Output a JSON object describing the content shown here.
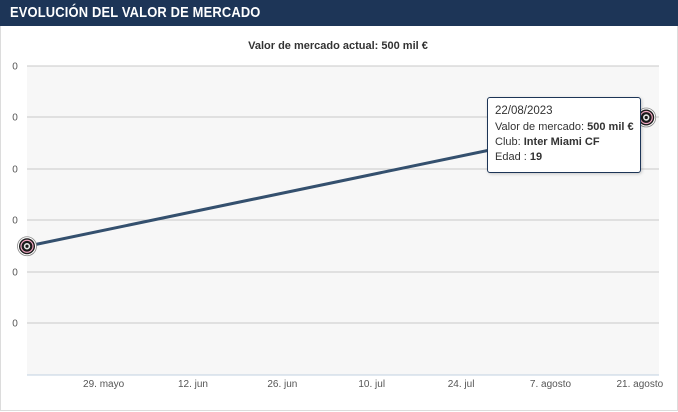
{
  "header": {
    "title": "EVOLUCIÓN DEL VALOR DE MERCADO"
  },
  "chart_data": {
    "type": "line",
    "title": "Valor de mercado actual: 500 mil €",
    "xlabel": "",
    "ylabel": "",
    "x_ticks": [
      "29. mayo",
      "12. jun",
      "26. jun",
      "10. jul",
      "24. jul",
      "7. agosto",
      "21. agosto"
    ],
    "y_tick_labels": [
      "0",
      "0",
      "0",
      "0",
      "0",
      "0"
    ],
    "x_range": [
      "2023-05-17",
      "2023-08-24"
    ],
    "y_range": [
      0,
      600000
    ],
    "grid": true,
    "series": [
      {
        "color": "#34506e",
        "points": [
          {
            "x": "2023-05-17",
            "y": 250000
          },
          {
            "x": "2023-08-22",
            "y": 500000
          }
        ]
      }
    ]
  },
  "tooltip": {
    "date": "22/08/2023",
    "value_label": "Valor de mercado:",
    "value": "500 mil €",
    "club_label": "Club:",
    "club": "Inter Miami CF",
    "age_label": "Edad :",
    "age": "19"
  },
  "colors": {
    "header_bg": "#1d3557",
    "plot_bg": "#f7f7f7",
    "line": "#34506e",
    "grid": "#c9c9c9",
    "tooltip_border": "#1d3557",
    "marker_ring": "#f2a8c4"
  },
  "icons": {
    "point_marker": "inter-miami-crest-icon"
  }
}
